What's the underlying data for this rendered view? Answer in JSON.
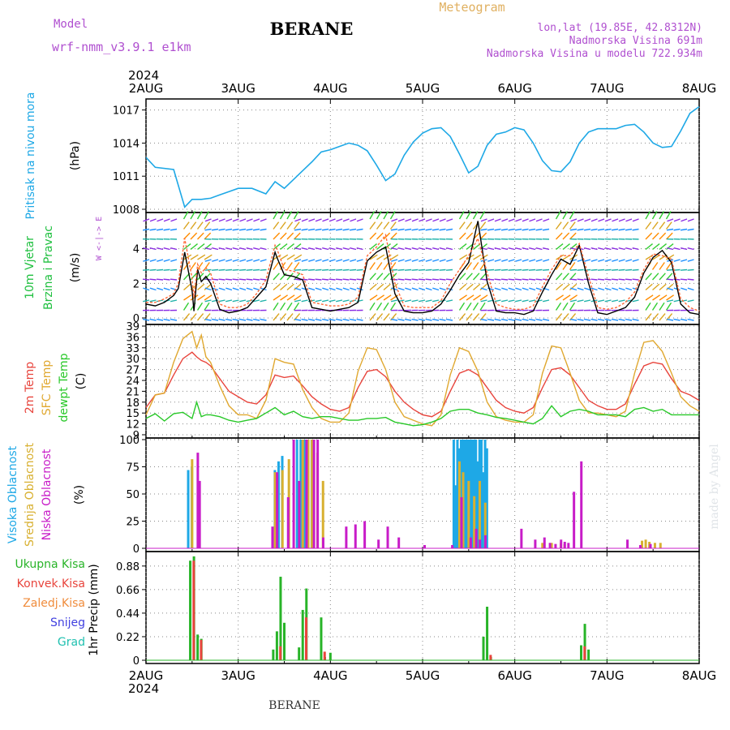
{
  "header": {
    "model_label": "Model",
    "model_name": "wrf-nmm_v3.9.1 e1km",
    "station": "BERANE",
    "product": "Meteogram",
    "lonlat": "lon,lat (19.85E, 42.8312N)",
    "elevation": "Nadmorska Visina 691m",
    "model_elevation": "Nadmorska Visina u modelu 722.934m"
  },
  "time_axis": {
    "year": "2024",
    "labels": [
      "2AUG",
      "3AUG",
      "4AUG",
      "5AUG",
      "6AUG",
      "7AUG",
      "8AUG"
    ]
  },
  "footer": {
    "station": "BERANE"
  },
  "watermark": "made by Angel",
  "colors": {
    "pressure": "#1ea8e6",
    "temp2m": "#e8443c",
    "sfc_temp": "#e0a830",
    "dewpt": "#28c828",
    "wind_speed": "#000000",
    "gust": "#ff6a3a",
    "cloud_high": "#1ea8e6",
    "cloud_mid": "#d8b030",
    "cloud_low": "#c81cc8",
    "rain_total": "#28b428",
    "rain_conv": "#e8443c",
    "rain_frz": "#f08c3c",
    "snow": "#4040e0",
    "hail": "#20c0b0"
  },
  "chart_data": [
    {
      "type": "line",
      "panel": "pressure",
      "ylabel_lines": [
        "Pritisak na nivou mora",
        "(hPa)"
      ],
      "ylim": [
        1008,
        1018
      ],
      "yticks": [
        1008,
        1011,
        1014,
        1017
      ],
      "grid": true,
      "x_days": [
        0,
        0.1,
        0.3,
        0.42,
        0.5,
        0.6,
        0.7,
        0.8,
        0.9,
        1.0,
        1.15,
        1.3,
        1.4,
        1.5,
        1.6,
        1.7,
        1.8,
        1.9,
        2.0,
        2.1,
        2.2,
        2.3,
        2.4,
        2.5,
        2.6,
        2.7,
        2.8,
        2.9,
        3.0,
        3.1,
        3.2,
        3.3,
        3.4,
        3.5,
        3.6,
        3.7,
        3.8,
        3.9,
        4.0,
        4.1,
        4.2,
        4.3,
        4.4,
        4.5,
        4.6,
        4.7,
        4.8,
        4.9,
        5.0,
        5.1,
        5.2,
        5.3,
        5.4,
        5.5,
        5.6,
        5.7,
        5.8,
        5.9,
        6.0
      ],
      "series": [
        {
          "values": [
            1012.7,
            1011.8,
            1011.6,
            1008.2,
            1008.9,
            1008.9,
            1009.0,
            1009.3,
            1009.6,
            1009.9,
            1009.9,
            1009.4,
            1010.5,
            1009.9,
            1010.7,
            1011.5,
            1012.3,
            1013.2,
            1013.4,
            1013.7,
            1014.0,
            1013.8,
            1013.3,
            1012.0,
            1010.6,
            1011.2,
            1012.9,
            1014.1,
            1014.9,
            1015.3,
            1015.4,
            1014.6,
            1013.0,
            1011.3,
            1011.9,
            1013.8,
            1014.8,
            1015.0,
            1015.4,
            1015.2,
            1014.0,
            1012.4,
            1011.5,
            1011.4,
            1012.3,
            1014.0,
            1015.0,
            1015.3,
            1015.3,
            1015.3,
            1015.6,
            1015.7,
            1015.0,
            1014.0,
            1013.6,
            1013.7,
            1015.1,
            1016.7,
            1017.3
          ]
        }
      ]
    },
    {
      "type": "line",
      "panel": "wind",
      "ylabel_lines": [
        "10m Vjetar",
        "Brzina i Pravac",
        "(m/s)"
      ],
      "direction_key": "W <-|-> E",
      "ylim": [
        0,
        6
      ],
      "yticks": [
        0,
        2,
        4
      ],
      "grid": true,
      "x_days": [
        0,
        0.1,
        0.2,
        0.3,
        0.35,
        0.42,
        0.5,
        0.52,
        0.56,
        0.6,
        0.65,
        0.7,
        0.8,
        0.9,
        1.0,
        1.1,
        1.2,
        1.3,
        1.4,
        1.42,
        1.5,
        1.6,
        1.7,
        1.8,
        1.9,
        2.0,
        2.1,
        2.2,
        2.3,
        2.4,
        2.5,
        2.6,
        2.7,
        2.8,
        2.9,
        3.0,
        3.1,
        3.2,
        3.3,
        3.4,
        3.5,
        3.6,
        3.7,
        3.8,
        3.9,
        4.0,
        4.1,
        4.2,
        4.3,
        4.4,
        4.5,
        4.6,
        4.7,
        4.8,
        4.9,
        5.0,
        5.1,
        5.2,
        5.3,
        5.4,
        5.5,
        5.6,
        5.7,
        5.8,
        5.9,
        6.0
      ],
      "series": [
        {
          "name": "speed",
          "values": [
            0.8,
            0.7,
            0.9,
            1.3,
            1.7,
            3.8,
            1.6,
            0.4,
            2.8,
            2.1,
            2.4,
            2.0,
            0.5,
            0.3,
            0.4,
            0.6,
            1.2,
            1.8,
            3.8,
            3.5,
            2.5,
            2.4,
            2.2,
            0.6,
            0.5,
            0.4,
            0.5,
            0.6,
            0.9,
            3.3,
            3.8,
            4.1,
            1.4,
            0.4,
            0.3,
            0.3,
            0.4,
            0.8,
            1.6,
            2.5,
            3.2,
            5.6,
            2.1,
            0.4,
            0.3,
            0.3,
            0.2,
            0.4,
            1.5,
            2.5,
            3.4,
            3.1,
            4.2,
            2.0,
            0.3,
            0.2,
            0.4,
            0.6,
            1.2,
            2.6,
            3.5,
            3.9,
            3.2,
            0.8,
            0.3,
            0.2
          ]
        },
        {
          "name": "gust",
          "values": [
            0.9,
            0.9,
            1.1,
            1.4,
            2.0,
            4.6,
            2.3,
            1.2,
            3.1,
            2.6,
            2.9,
            2.6,
            0.8,
            0.6,
            0.6,
            0.8,
            1.4,
            2.2,
            4.2,
            4.0,
            2.8,
            2.7,
            2.5,
            0.9,
            0.8,
            0.7,
            0.7,
            0.8,
            1.2,
            3.6,
            4.1,
            4.8,
            2.0,
            0.7,
            0.6,
            0.6,
            0.6,
            1.0,
            2.0,
            2.8,
            3.6,
            4.6,
            2.6,
            0.8,
            0.6,
            0.5,
            0.5,
            0.7,
            1.8,
            2.8,
            3.6,
            3.6,
            4.3,
            2.4,
            0.6,
            0.5,
            0.6,
            0.9,
            1.5,
            2.8,
            3.7,
            3.6,
            3.4,
            1.1,
            0.6,
            0.4
          ]
        }
      ]
    },
    {
      "type": "line",
      "panel": "temperature",
      "ylabel_lines": [
        "2m Temp",
        "SFC Temp",
        "dewpt Temp",
        "(C)"
      ],
      "ylim": [
        9,
        39
      ],
      "yticks": [
        9,
        12,
        15,
        18,
        21,
        24,
        27,
        30,
        33,
        36,
        39
      ],
      "grid": true,
      "x_days": [
        0,
        0.1,
        0.2,
        0.3,
        0.4,
        0.5,
        0.55,
        0.6,
        0.65,
        0.7,
        0.8,
        0.9,
        1.0,
        1.1,
        1.2,
        1.3,
        1.4,
        1.5,
        1.6,
        1.7,
        1.8,
        1.9,
        2.0,
        2.1,
        2.2,
        2.3,
        2.4,
        2.5,
        2.6,
        2.7,
        2.8,
        2.9,
        3.0,
        3.1,
        3.2,
        3.3,
        3.4,
        3.5,
        3.6,
        3.7,
        3.8,
        3.9,
        4.0,
        4.1,
        4.2,
        4.3,
        4.4,
        4.5,
        4.6,
        4.7,
        4.8,
        4.9,
        5.0,
        5.1,
        5.2,
        5.3,
        5.4,
        5.5,
        5.6,
        5.7,
        5.8,
        5.9,
        6.0
      ],
      "series": [
        {
          "name": "2m Temp",
          "values": [
            16.5,
            20.0,
            20.5,
            25.5,
            30.0,
            31.8,
            30.5,
            29.5,
            29.0,
            28.0,
            24.5,
            21.0,
            19.5,
            18.0,
            17.5,
            20.0,
            25.5,
            24.8,
            25.2,
            22.5,
            19.5,
            17.5,
            16.0,
            15.5,
            16.5,
            22.0,
            26.5,
            27.0,
            25.0,
            21.0,
            18.0,
            16.0,
            14.5,
            14.0,
            15.5,
            21.0,
            26.0,
            27.0,
            25.5,
            22.0,
            18.5,
            16.5,
            15.5,
            15.0,
            16.5,
            22.0,
            27.0,
            27.5,
            25.5,
            22.0,
            18.5,
            17.0,
            16.0,
            16.0,
            17.5,
            23.0,
            28.0,
            29.0,
            28.5,
            24.5,
            21.0,
            20.0,
            18.5
          ]
        },
        {
          "name": "SFC Temp",
          "values": [
            14.5,
            20.0,
            20.5,
            29.0,
            35.5,
            37.5,
            33.0,
            36.5,
            30.5,
            29.0,
            22.5,
            17.0,
            14.5,
            14.5,
            13.5,
            18.5,
            30.0,
            29.0,
            28.5,
            21.5,
            16.5,
            13.5,
            12.5,
            12.5,
            15.0,
            26.5,
            33.0,
            32.5,
            27.0,
            18.0,
            14.0,
            13.0,
            12.0,
            11.5,
            14.5,
            25.5,
            33.0,
            32.0,
            26.5,
            18.0,
            14.0,
            13.0,
            12.5,
            12.5,
            14.5,
            26.0,
            33.5,
            33.0,
            26.0,
            18.5,
            15.0,
            15.0,
            14.5,
            14.0,
            15.5,
            26.0,
            34.5,
            35.0,
            32.0,
            26.0,
            19.5,
            17.0,
            15.5
          ]
        },
        {
          "name": "dewpt Temp",
          "values": [
            13.5,
            14.8,
            12.8,
            14.8,
            15.2,
            13.5,
            18.0,
            14.0,
            14.5,
            14.5,
            14.0,
            13.0,
            12.5,
            13.0,
            13.5,
            15.0,
            16.5,
            14.5,
            15.5,
            14.0,
            13.5,
            14.0,
            14.0,
            13.5,
            13.0,
            13.0,
            13.5,
            13.5,
            13.8,
            12.5,
            12.0,
            11.5,
            11.8,
            12.5,
            13.5,
            15.5,
            16.0,
            16.0,
            15.0,
            14.5,
            13.8,
            13.5,
            13.0,
            12.5,
            12.0,
            13.5,
            17.0,
            14.0,
            15.5,
            16.0,
            15.5,
            14.5,
            14.5,
            14.5,
            14.0,
            16.0,
            16.5,
            15.5,
            16.0,
            14.5,
            14.5,
            14.5,
            14.5
          ]
        }
      ]
    },
    {
      "type": "bar",
      "panel": "clouds",
      "ylabel_lines": [
        "Visoka Oblacnost",
        "Srednja Oblacnost",
        "Niska Oblacnost",
        "(%)"
      ],
      "ylim": [
        0,
        100
      ],
      "yticks": [
        0,
        25,
        50,
        75,
        100
      ],
      "grid": true,
      "series": [
        {
          "name": "Visoka Oblacnost",
          "x_days": [
            0.48,
            0.52,
            1.42,
            1.46,
            1.5,
            1.66,
            1.7,
            1.74,
            1.78,
            1.82,
            3.36,
            3.38,
            3.4,
            3.42,
            3.44,
            3.46,
            3.48,
            3.5,
            3.52,
            3.54,
            3.56,
            3.58,
            3.6,
            3.62,
            3.64,
            3.66,
            3.68,
            3.7,
            3.72
          ],
          "values": [
            72,
            75,
            72,
            80,
            85,
            100,
            100,
            100,
            100,
            100,
            100,
            58,
            100,
            92,
            100,
            100,
            100,
            100,
            100,
            100,
            100,
            100,
            100,
            80,
            100,
            100,
            70,
            100,
            92
          ]
        },
        {
          "name": "Srednja Oblacnost",
          "x_days": [
            0.5,
            0.58,
            1.4,
            1.48,
            1.55,
            1.7,
            1.76,
            1.8,
            1.86,
            1.92,
            3.4,
            3.44,
            3.5,
            3.56,
            3.62,
            3.68,
            4.3,
            4.4,
            4.5,
            4.54,
            5.38,
            5.42,
            5.46,
            5.52,
            5.58
          ],
          "values": [
            82,
            35,
            70,
            72,
            82,
            100,
            100,
            100,
            88,
            62,
            80,
            70,
            62,
            48,
            62,
            42,
            5,
            5,
            5,
            4,
            7,
            8,
            6,
            5,
            5
          ]
        },
        {
          "name": "Niska Oblacnost",
          "x_days": [
            0.54,
            0.56,
            1.35,
            1.4,
            1.52,
            1.58,
            1.64,
            1.72,
            1.8,
            1.84,
            1.9,
            2.15,
            2.25,
            2.35,
            2.5,
            2.6,
            2.72,
            3.0,
            3.3,
            3.4,
            3.5,
            3.56,
            3.6,
            3.66,
            4.05,
            4.2,
            4.3,
            4.36,
            4.42,
            4.48,
            4.52,
            4.56,
            4.62,
            4.7,
            5.2,
            5.34,
            5.45
          ],
          "values": [
            88,
            62,
            20,
            70,
            47,
            100,
            62,
            100,
            100,
            100,
            10,
            20,
            22,
            25,
            8,
            20,
            10,
            3,
            3,
            47,
            10,
            18,
            8,
            12,
            18,
            8,
            10,
            5,
            4,
            8,
            6,
            5,
            52,
            80,
            8,
            3,
            4
          ]
        }
      ]
    },
    {
      "type": "bar",
      "panel": "precip",
      "ylabel_lines": [
        "1hr Precip (mm)"
      ],
      "legend": [
        "Ukupna Kisa",
        "Konvek.Kisa",
        "Zaledj.Kisa",
        "Snijeg",
        "Grad"
      ],
      "ylim": [
        0,
        1.0
      ],
      "yticks": [
        0,
        0.22,
        0.44,
        0.66,
        0.88
      ],
      "grid": true,
      "series": [
        {
          "name": "Ukupna Kisa",
          "x_days": [
            0.48,
            0.52,
            0.56,
            0.6,
            1.38,
            1.42,
            1.46,
            1.5,
            1.66,
            1.7,
            1.74,
            1.9,
            1.94,
            2.0,
            3.66,
            3.7,
            3.74,
            4.72,
            4.76,
            4.8
          ],
          "values": [
            0.93,
            0.97,
            0.24,
            0.2,
            0.1,
            0.27,
            0.78,
            0.35,
            0.12,
            0.47,
            0.67,
            0.4,
            0.03,
            0.07,
            0.22,
            0.5,
            0.03,
            0.14,
            0.34,
            0.1
          ]
        },
        {
          "name": "Konvek.Kisa",
          "x_days": [
            0.5,
            0.58,
            1.44,
            1.72,
            1.92,
            3.72,
            4.74
          ],
          "values": [
            0.93,
            0.19,
            0.13,
            0.4,
            0.08,
            0.05,
            0.13
          ]
        }
      ]
    }
  ]
}
